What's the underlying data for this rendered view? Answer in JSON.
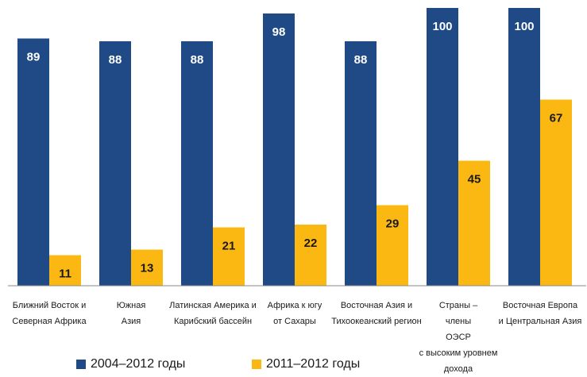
{
  "chart_data": {
    "type": "bar",
    "categories": [
      [
        "Ближний Восток и",
        "Северная Африка"
      ],
      [
        "Южная",
        "Азия"
      ],
      [
        "Латинская Америка и",
        "Карибский бассейн"
      ],
      [
        "Африка к югу",
        "от Сахары"
      ],
      [
        "Восточная Азия и",
        "Тихоокеанский регион"
      ],
      [
        "Страны –",
        "члены",
        "ОЭСР",
        "с высоким уровнем",
        "дохода"
      ],
      [
        "Восточная Европа",
        "и Центральная Азия"
      ]
    ],
    "series": [
      {
        "name": "2004–2012 годы",
        "color": "#1f4a86",
        "values": [
          89,
          88,
          88,
          98,
          88,
          100,
          100
        ]
      },
      {
        "name": "2011–2012 годы",
        "color": "#fbb812",
        "values": [
          11,
          13,
          21,
          22,
          29,
          45,
          67
        ]
      }
    ],
    "ylim": [
      0,
      100
    ],
    "grid": false,
    "legend_position": "bottom-left",
    "label_colors": {
      "dark_bar": "#ffffff",
      "light_bar": "#1a1a1a"
    }
  }
}
